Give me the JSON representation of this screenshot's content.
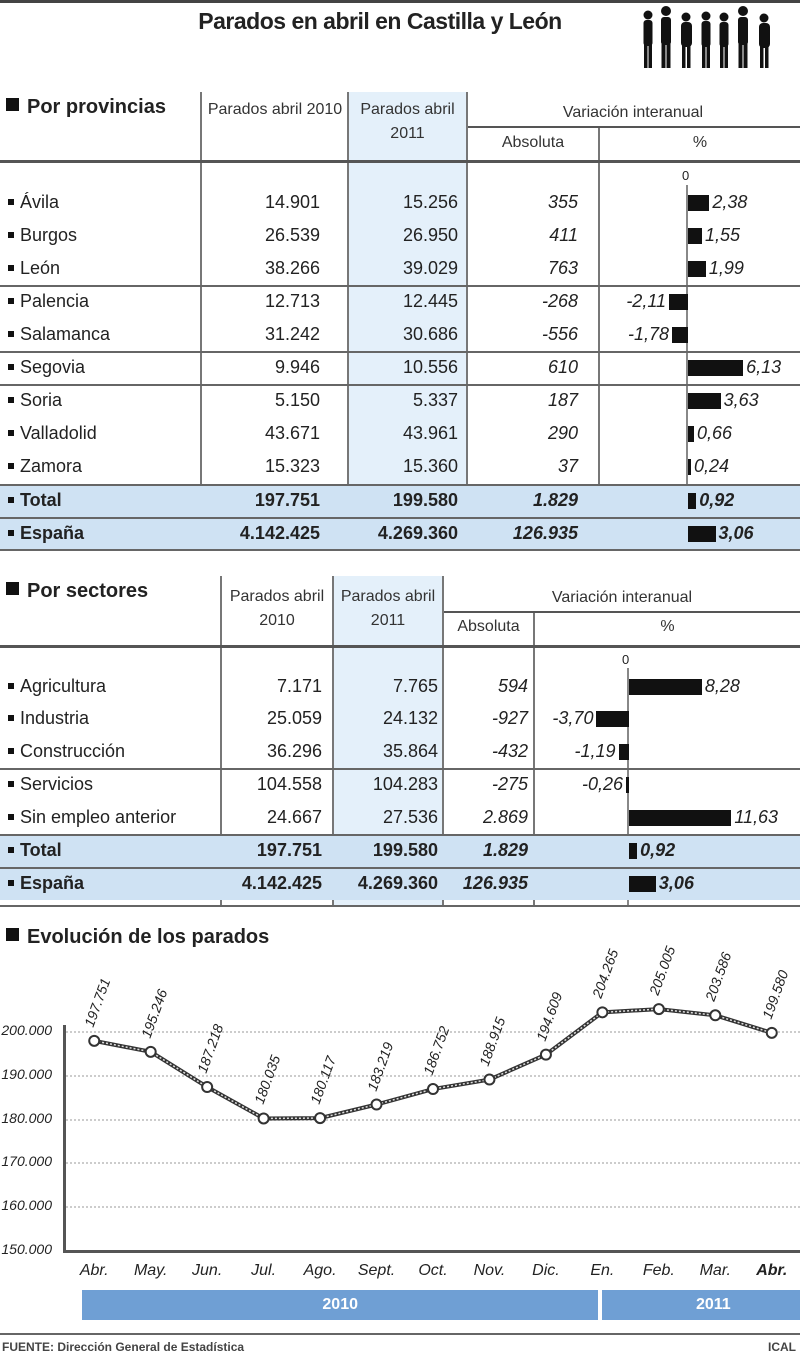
{
  "title": "Parados en abril en Castilla y León",
  "icon": "people-queue-icon",
  "provincias": {
    "heading": "Por provincias",
    "headers": {
      "c2010": "Parados abril 2010",
      "c2011": "Parados abril 2011",
      "variacion": "Variación interanual",
      "absoluta": "Absoluta",
      "pct": "%",
      "zero": "0"
    },
    "rows": [
      {
        "name": "Ávila",
        "v2010": "14.901",
        "v2011": "15.256",
        "abs": "355",
        "pct": "2,38",
        "val": 2.38
      },
      {
        "name": "Burgos",
        "v2010": "26.539",
        "v2011": "26.950",
        "abs": "411",
        "pct": "1,55",
        "val": 1.55
      },
      {
        "name": "León",
        "v2010": "38.266",
        "v2011": "39.029",
        "abs": "763",
        "pct": "1,99",
        "val": 1.99
      },
      {
        "name": "Palencia",
        "v2010": "12.713",
        "v2011": "12.445",
        "abs": "-268",
        "pct": "-2,11",
        "val": -2.11
      },
      {
        "name": "Salamanca",
        "v2010": "31.242",
        "v2011": "30.686",
        "abs": "-556",
        "pct": "-1,78",
        "val": -1.78
      },
      {
        "name": "Segovia",
        "v2010": "9.946",
        "v2011": "10.556",
        "abs": "610",
        "pct": "6,13",
        "val": 6.13
      },
      {
        "name": "Soria",
        "v2010": "5.150",
        "v2011": "5.337",
        "abs": "187",
        "pct": "3,63",
        "val": 3.63
      },
      {
        "name": "Valladolid",
        "v2010": "43.671",
        "v2011": "43.961",
        "abs": "290",
        "pct": "0,66",
        "val": 0.66
      },
      {
        "name": "Zamora",
        "v2010": "15.323",
        "v2011": "15.360",
        "abs": "37",
        "pct": "0,24",
        "val": 0.24
      },
      {
        "name": "Total",
        "v2010": "197.751",
        "v2011": "199.580",
        "abs": "1.829",
        "pct": "0,92",
        "val": 0.92
      },
      {
        "name": "España",
        "v2010": "4.142.425",
        "v2011": "4.269.360",
        "abs": "126.935",
        "pct": "3,06",
        "val": 3.06
      }
    ]
  },
  "sectores": {
    "heading": "Por sectores",
    "headers": {
      "c2010": "Parados abril 2010",
      "c2011": "Parados abril 2011",
      "variacion": "Variación interanual",
      "absoluta": "Absoluta",
      "pct": "%",
      "zero": "0"
    },
    "rows": [
      {
        "name": "Agricultura",
        "v2010": "7.171",
        "v2011": "7.765",
        "abs": "594",
        "pct": "8,28",
        "val": 8.28
      },
      {
        "name": "Industria",
        "v2010": "25.059",
        "v2011": "24.132",
        "abs": "-927",
        "pct": "-3,70",
        "val": -3.7
      },
      {
        "name": "Construcción",
        "v2010": "36.296",
        "v2011": "35.864",
        "abs": "-432",
        "pct": "-1,19",
        "val": -1.19
      },
      {
        "name": "Servicios",
        "v2010": "104.558",
        "v2011": "104.283",
        "abs": "-275",
        "pct": "-0,26",
        "val": -0.26
      },
      {
        "name": "Sin empleo anterior",
        "v2010": "24.667",
        "v2011": "27.536",
        "abs": "2.869",
        "pct": "11,63",
        "val": 11.63
      },
      {
        "name": "Total",
        "v2010": "197.751",
        "v2011": "199.580",
        "abs": "1.829",
        "pct": "0,92",
        "val": 0.92
      },
      {
        "name": "España",
        "v2010": "4.142.425",
        "v2011": "4.269.360",
        "abs": "126.935",
        "pct": "3,06",
        "val": 3.06
      }
    ]
  },
  "evolucion": {
    "heading": "Evolución de los parados"
  },
  "footer": {
    "source": "FUENTE: Dirección General de Estadística",
    "credit": "ICAL"
  },
  "colors": {
    "highlight": "#cfe2f3",
    "col2011": "#e4f0fa",
    "year_bar": "#6f9fd4",
    "bars": "#111111"
  },
  "chart_data": [
    {
      "type": "bar",
      "title": "Por provincias — Variación interanual %",
      "categories": [
        "Ávila",
        "Burgos",
        "León",
        "Palencia",
        "Salamanca",
        "Segovia",
        "Soria",
        "Valladolid",
        "Zamora",
        "Total",
        "España"
      ],
      "values": [
        2.38,
        1.55,
        1.99,
        -2.11,
        -1.78,
        6.13,
        3.63,
        0.66,
        0.24,
        0.92,
        3.06
      ],
      "xlabel": "%",
      "ylabel": ""
    },
    {
      "type": "bar",
      "title": "Por sectores — Variación interanual %",
      "categories": [
        "Agricultura",
        "Industria",
        "Construcción",
        "Servicios",
        "Sin empleo anterior",
        "Total",
        "España"
      ],
      "values": [
        8.28,
        -3.7,
        -1.19,
        -0.26,
        11.63,
        0.92,
        3.06
      ],
      "xlabel": "%",
      "ylabel": ""
    },
    {
      "type": "line",
      "title": "Evolución de los parados",
      "categories": [
        "Abr.",
        "May.",
        "Jun.",
        "Jul.",
        "Ago.",
        "Sept.",
        "Oct.",
        "Nov.",
        "Dic.",
        "En.",
        "Feb.",
        "Mar.",
        "Abr."
      ],
      "year_groups": [
        {
          "label": "2010",
          "span": 9
        },
        {
          "label": "2011",
          "span": 4
        }
      ],
      "values": [
        197751,
        195246,
        187218,
        180035,
        180117,
        183219,
        186752,
        188915,
        194609,
        204265,
        205005,
        203586,
        199580
      ],
      "labels": [
        "197.751",
        "195.246",
        "187.218",
        "180.035",
        "180.117",
        "183.219",
        "186.752",
        "188.915",
        "194.609",
        "204.265",
        "205.005",
        "203.586",
        "199.580"
      ],
      "yticks": [
        "150.000",
        "160.000",
        "170.000",
        "180.000",
        "190.000",
        "200.000"
      ],
      "ylim": [
        150000,
        200000
      ],
      "grid": true,
      "xlabel": "",
      "ylabel": ""
    }
  ]
}
